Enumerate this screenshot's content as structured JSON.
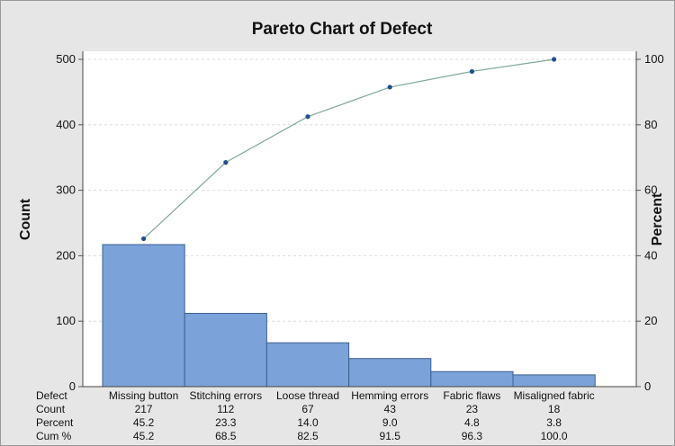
{
  "chart_data": {
    "type": "bar",
    "title": "Pareto Chart of Defect",
    "xlabel": "",
    "ylabel": "Count",
    "y2label": "Percent",
    "ylim": [
      0,
      500
    ],
    "y2lim": [
      0,
      100
    ],
    "yticks": [
      "0",
      "100",
      "200",
      "300",
      "400",
      "500"
    ],
    "y2ticks": [
      "0",
      "20",
      "40",
      "60",
      "80",
      "100"
    ],
    "grid": true,
    "categories": [
      "Missing button",
      "Stitching errors",
      "Loose thread",
      "Hemming errors",
      "Fabric flaws",
      "Misaligned fabric"
    ],
    "series": [
      {
        "values": [
          217,
          112,
          67,
          43,
          23,
          18
        ]
      },
      {
        "values": [
          45.2,
          68.5,
          82.5,
          91.5,
          96.3,
          100.0
        ]
      }
    ],
    "table": {
      "row_labels": [
        "Defect",
        "Count",
        "Percent",
        "Cum %"
      ],
      "count": [
        "217",
        "112",
        "67",
        "43",
        "23",
        "18"
      ],
      "percent": [
        "45.2",
        "23.3",
        "14.0",
        "9.0",
        "4.8",
        "3.8"
      ],
      "cum": [
        "45.2",
        "68.5",
        "82.5",
        "91.5",
        "96.3",
        "100.0"
      ]
    },
    "colors": {
      "bar_fill": "#7ba3d9",
      "bar_stroke": "#3e5f8f",
      "line": "#7fa89a",
      "marker": "#1f4e8c",
      "plot_bg": "#ffffff",
      "grid": "#d9dde6"
    }
  }
}
